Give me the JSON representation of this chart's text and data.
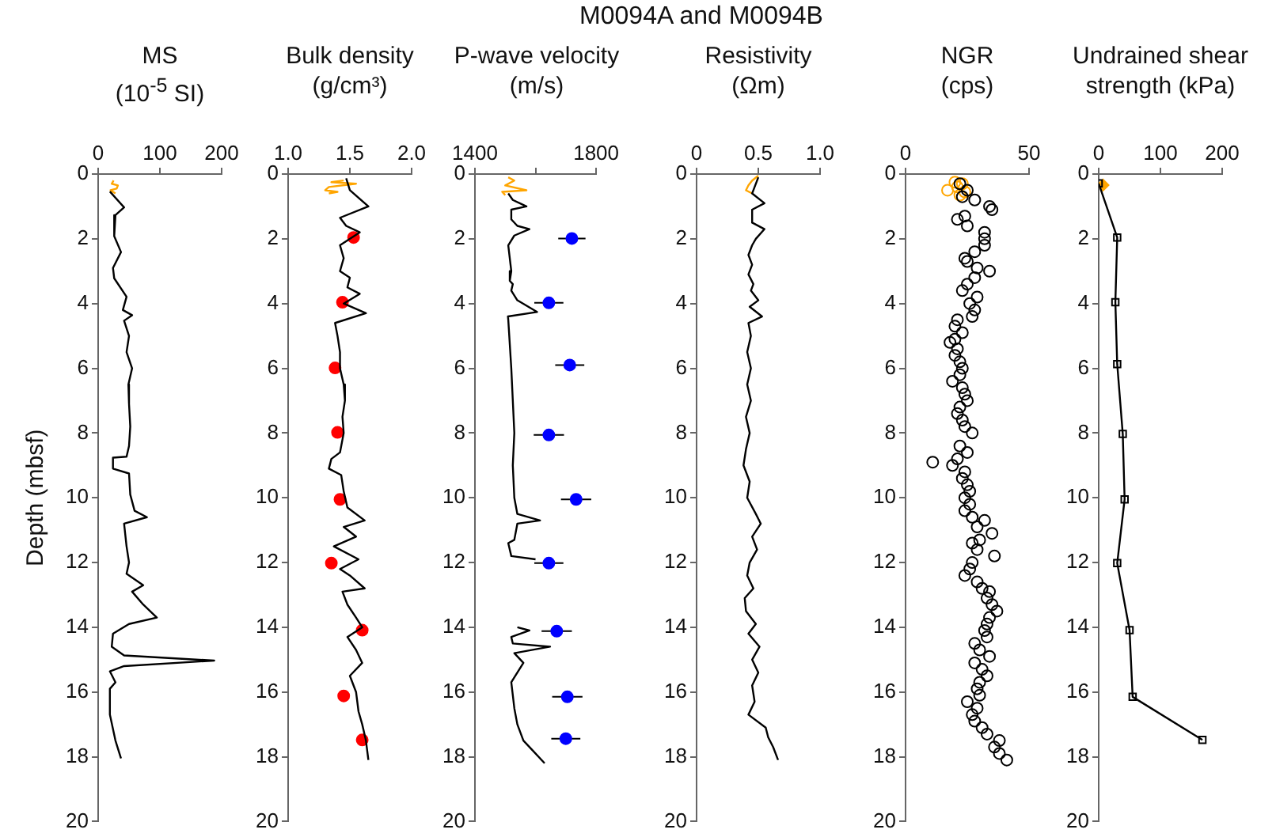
{
  "chart_data": [
    {
      "type": "line",
      "xlabel": "MS\n(10$^{-5}$ SI)",
      "ylabel": "Depth (mbsf)",
      "xlim": [
        0,
        200
      ],
      "xticks": [
        0,
        100,
        200
      ],
      "ylim": [
        20,
        0
      ],
      "yticks": [
        0,
        2,
        4,
        6,
        8,
        10,
        12,
        14,
        16,
        18,
        20
      ],
      "series": [
        {
          "type": "line",
          "color": "#000000",
          "x": [
            19,
            42,
            28,
            26,
            37,
            24,
            26,
            46,
            40,
            55,
            42,
            50,
            46,
            55,
            49,
            50,
            52,
            50,
            46,
            24,
            24,
            50,
            52,
            59,
            79,
            42,
            46,
            50,
            46,
            73,
            55,
            73,
            95,
            50,
            24,
            22,
            42,
            188,
            42,
            19,
            28,
            19,
            19,
            28,
            37
          ],
          "values": [
            0.54,
            1.03,
            1.27,
            1.92,
            2.41,
            2.9,
            3.22,
            3.79,
            4.2,
            4.36,
            4.53,
            5.0,
            5.5,
            6.0,
            6.5,
            7.1,
            7.8,
            8.4,
            8.73,
            8.76,
            9.1,
            9.25,
            9.9,
            10.4,
            10.6,
            10.8,
            11.5,
            12.0,
            12.35,
            12.7,
            12.9,
            13.3,
            13.7,
            13.9,
            14.2,
            14.6,
            14.87,
            15.03,
            15.2,
            15.36,
            15.7,
            15.9,
            16.7,
            17.5,
            18.05
          ]
        },
        {
          "type": "line",
          "color": "#ffa500",
          "x": [
            25,
            22,
            32,
            30,
            20,
            28
          ],
          "values": [
            0.2,
            0.3,
            0.35,
            0.45,
            0.5,
            0.6
          ]
        }
      ]
    },
    {
      "type": "line",
      "xlabel": "Bulk density\n(g/cm³)",
      "xlim": [
        1,
        2
      ],
      "xticks": [
        {
          "value": 1,
          "label": "1.0"
        },
        1.5,
        {
          "value": 2,
          "label": "2.0"
        }
      ],
      "ylim": [
        20,
        0
      ],
      "yticks": [
        0,
        2,
        4,
        6,
        8,
        10,
        12,
        14,
        16,
        18,
        20
      ],
      "series": [
        {
          "type": "line",
          "color": "#000000",
          "x": [
            1.47,
            1.5,
            1.65,
            1.42,
            1.47,
            1.58,
            1.42,
            1.45,
            1.42,
            1.5,
            1.48,
            1.58,
            1.45,
            1.63,
            1.38,
            1.4,
            1.42,
            1.42,
            1.45,
            1.46,
            1.44,
            1.45,
            1.42,
            1.35,
            1.33,
            1.43,
            1.45,
            1.48,
            1.62,
            1.45,
            1.55,
            1.37,
            1.57,
            1.42,
            1.5,
            1.62,
            1.44,
            1.48,
            1.55,
            1.6,
            1.48,
            1.55,
            1.6,
            1.5,
            1.55,
            1.57,
            1.6,
            1.63,
            1.65
          ],
          "values": [
            0.13,
            0.5,
            1.0,
            1.35,
            1.6,
            1.8,
            2.2,
            2.6,
            3.0,
            3.2,
            3.5,
            3.7,
            4.0,
            4.3,
            4.6,
            5.0,
            5.5,
            6.0,
            6.5,
            7.0,
            7.5,
            8.0,
            8.6,
            8.8,
            9.1,
            9.3,
            9.8,
            10.3,
            10.7,
            10.9,
            11.2,
            11.5,
            11.9,
            12.2,
            12.4,
            12.8,
            12.9,
            13.3,
            13.7,
            14.0,
            14.3,
            14.7,
            15.1,
            15.5,
            16.0,
            16.6,
            17.0,
            17.5,
            18.1
          ]
        },
        {
          "type": "line",
          "color": "#ffa500",
          "x": [
            1.45,
            1.35,
            1.55,
            1.33,
            1.3,
            1.4,
            1.33
          ],
          "values": [
            0.2,
            0.25,
            0.3,
            0.4,
            0.5,
            0.55,
            0.6
          ]
        },
        {
          "type": "scatter",
          "marker": "circle",
          "color": "#ff0000",
          "x": [
            1.53,
            1.44,
            1.38,
            1.4,
            1.42,
            1.35,
            1.6,
            1.45,
            1.6
          ],
          "values": [
            1.96,
            3.96,
            5.99,
            7.98,
            10.05,
            12.02,
            14.09,
            16.12,
            17.48
          ]
        }
      ]
    },
    {
      "type": "line",
      "xlabel": "P-wave velocity\n(m/s)",
      "xlim": [
        1400,
        1800
      ],
      "xticks": [
        1400,
        {
          "value": 1600,
          "label": null
        },
        1800
      ],
      "ylim": [
        20,
        0
      ],
      "yticks": [
        0,
        2,
        4,
        6,
        8,
        10,
        12,
        14,
        16,
        18,
        20
      ],
      "series": [
        {
          "type": "line",
          "color": "#000000",
          "x": [
            1510,
            1525,
            1570,
            1520,
            1520,
            1540,
            1580,
            1530,
            1510,
            1520,
            1515,
            1525,
            1520,
            1540,
            1605,
            1509,
            1510,
            1520,
            1530,
            1525,
            1530,
            1540,
            1615,
            1540,
            1530,
            1510,
            1520,
            1600,
            null,
            1540,
            1580,
            1520,
            1525,
            1648,
            1530,
            1560,
            1520,
            1530,
            1540,
            1560,
            1590,
            1630
          ],
          "values": [
            0.6,
            0.8,
            1.0,
            1.1,
            1.4,
            1.6,
            1.7,
            1.9,
            2.2,
            3.0,
            3.3,
            3.4,
            3.6,
            3.9,
            4.26,
            4.4,
            4.5,
            6.0,
            8.0,
            9.0,
            10.0,
            10.5,
            10.7,
            10.8,
            11.3,
            11.4,
            11.8,
            11.9,
            null,
            14.0,
            14.1,
            14.3,
            14.5,
            14.6,
            14.8,
            15.1,
            15.7,
            16.5,
            17.0,
            17.5,
            17.8,
            18.2
          ]
        },
        {
          "type": "line",
          "color": "#ffa500",
          "x": [
            1510,
            1530,
            1500,
            1570,
            1490,
            1500
          ],
          "values": [
            0.1,
            0.2,
            0.35,
            0.5,
            0.55,
            0.65
          ]
        },
        {
          "type": "scatter",
          "marker": "circle",
          "color": "#0000ff",
          "x": [
            1720,
            1644,
            1713,
            1644,
            1734,
            1644,
            1670,
            1705,
            1700
          ],
          "values": [
            1.99,
            3.98,
            5.9,
            8.06,
            10.05,
            12.02,
            14.12,
            16.15,
            17.44
          ],
          "xerrors": [
            45,
            48,
            48,
            50,
            50,
            48,
            50,
            50,
            48
          ]
        }
      ]
    },
    {
      "type": "line",
      "title": "M0094A and M0094B",
      "xlabel": "Resistivity\n(Ωm)",
      "xlim": [
        0,
        1
      ],
      "xticks": [
        0,
        0.5,
        {
          "value": 1,
          "label": "1.0"
        }
      ],
      "ylim": [
        20,
        0
      ],
      "yticks": [
        0,
        2,
        4,
        6,
        8,
        10,
        12,
        14,
        16,
        18,
        20
      ],
      "series": [
        {
          "type": "line",
          "color": "#000000",
          "x": [
            0.5,
            0.47,
            0.45,
            0.55,
            0.45,
            0.45,
            0.55,
            0.48,
            0.45,
            0.42,
            0.45,
            0.42,
            0.46,
            0.44,
            0.5,
            0.43,
            0.53,
            0.42,
            0.44,
            0.41,
            0.44,
            0.41,
            0.44,
            0.4,
            0.43,
            0.4,
            0.38,
            0.43,
            0.41,
            0.48,
            0.52,
            0.45,
            0.49,
            0.43,
            0.41,
            0.46,
            0.39,
            0.4,
            0.48,
            0.42,
            0.51,
            0.45,
            0.5,
            0.45,
            0.47,
            0.42,
            0.56,
            0.58,
            0.62,
            0.66
          ],
          "values": [
            0.1,
            0.4,
            0.6,
            0.9,
            1.1,
            1.5,
            1.7,
            2.0,
            2.2,
            2.5,
            2.8,
            3.1,
            3.4,
            3.6,
            3.9,
            4.1,
            4.4,
            4.6,
            5.0,
            5.5,
            6.0,
            6.5,
            7.0,
            7.5,
            8.0,
            8.5,
            9.0,
            9.5,
            10.0,
            10.5,
            10.8,
            11.2,
            11.6,
            12.0,
            12.4,
            12.8,
            13.1,
            13.5,
            13.9,
            14.2,
            14.6,
            15.0,
            15.4,
            15.8,
            16.3,
            16.7,
            17.1,
            17.4,
            17.7,
            18.1
          ]
        },
        {
          "type": "line",
          "color": "#ffa500",
          "x": [
            0.5,
            0.45,
            0.42,
            0.4,
            0.45
          ],
          "values": [
            0.05,
            0.2,
            0.35,
            0.5,
            0.6
          ]
        }
      ]
    },
    {
      "type": "scatter",
      "marker": "circle",
      "xlabel": "NGR\n(cps)",
      "xlim": [
        0,
        50
      ],
      "xticks": [
        0,
        50
      ],
      "ylim": [
        20,
        0
      ],
      "yticks": [
        0,
        2,
        4,
        6,
        8,
        10,
        12,
        14,
        16,
        18,
        20
      ],
      "series": [
        {
          "color": "#000000",
          "x": [
            22,
            25,
            23,
            28,
            34,
            35,
            24,
            21,
            25,
            32,
            32,
            32,
            28,
            24,
            25,
            29,
            34,
            28,
            25,
            23,
            29,
            26,
            28,
            27,
            21,
            20,
            23,
            20,
            18,
            21,
            20,
            22,
            23,
            22,
            19,
            23,
            24,
            25,
            22,
            21,
            23,
            24,
            27,
            22,
            25,
            21,
            11,
            19,
            24,
            23,
            25,
            26,
            24,
            26,
            24,
            27,
            32,
            29,
            35,
            30,
            27,
            29,
            36,
            27,
            26,
            24,
            29,
            31,
            34,
            33,
            35,
            37,
            34,
            33,
            32,
            33,
            28,
            30,
            34,
            28,
            31,
            33,
            30,
            29,
            30,
            25,
            29,
            27,
            28,
            31,
            33,
            38,
            36,
            38,
            41
          ],
          "values": [
            0.3,
            0.5,
            0.7,
            0.8,
            1.0,
            1.1,
            1.3,
            1.4,
            1.6,
            1.8,
            2.0,
            2.2,
            2.4,
            2.6,
            2.7,
            2.9,
            3.0,
            3.2,
            3.4,
            3.6,
            3.8,
            4.0,
            4.2,
            4.4,
            4.5,
            4.7,
            4.9,
            5.1,
            5.2,
            5.4,
            5.6,
            5.8,
            6.0,
            6.2,
            6.4,
            6.6,
            6.8,
            7.0,
            7.2,
            7.4,
            7.6,
            7.8,
            8.0,
            8.4,
            8.6,
            8.8,
            8.9,
            9.0,
            9.2,
            9.4,
            9.6,
            9.8,
            10.0,
            10.2,
            10.4,
            10.6,
            10.7,
            10.9,
            11.1,
            11.3,
            11.4,
            11.6,
            11.8,
            12.0,
            12.2,
            12.4,
            12.6,
            12.8,
            12.9,
            13.1,
            13.3,
            13.5,
            13.7,
            13.9,
            14.1,
            14.3,
            14.5,
            14.7,
            14.9,
            15.1,
            15.3,
            15.5,
            15.7,
            15.9,
            16.1,
            16.3,
            16.5,
            16.7,
            16.9,
            17.1,
            17.3,
            17.5,
            17.7,
            17.9,
            18.1
          ]
        },
        {
          "color": "#ffa500",
          "x": [
            20,
            23,
            21,
            17,
            24,
            22
          ],
          "values": [
            0.25,
            0.3,
            0.4,
            0.5,
            0.55,
            0.65
          ]
        }
      ]
    },
    {
      "type": "line",
      "marker": "square",
      "xlabel": "Undrained shear\nstrength (kPa)",
      "xlim": [
        0,
        200
      ],
      "xticks": [
        0,
        100,
        200
      ],
      "ylim": [
        20,
        0
      ],
      "yticks": [
        0,
        2,
        4,
        6,
        8,
        10,
        12,
        14,
        16,
        18,
        20
      ],
      "series": [
        {
          "type": "line",
          "color": "#000000",
          "x": [
            0,
            30,
            27,
            30,
            39,
            42,
            30,
            50,
            55,
            168
          ],
          "values": [
            0.29,
            1.96,
            3.96,
            5.87,
            8.03,
            10.05,
            12.02,
            14.09,
            16.15,
            17.48
          ]
        },
        {
          "type": "scatter",
          "marker": "diamond",
          "color": "#ffa500",
          "x": [
            7
          ],
          "values": [
            0.34
          ]
        }
      ]
    }
  ]
}
